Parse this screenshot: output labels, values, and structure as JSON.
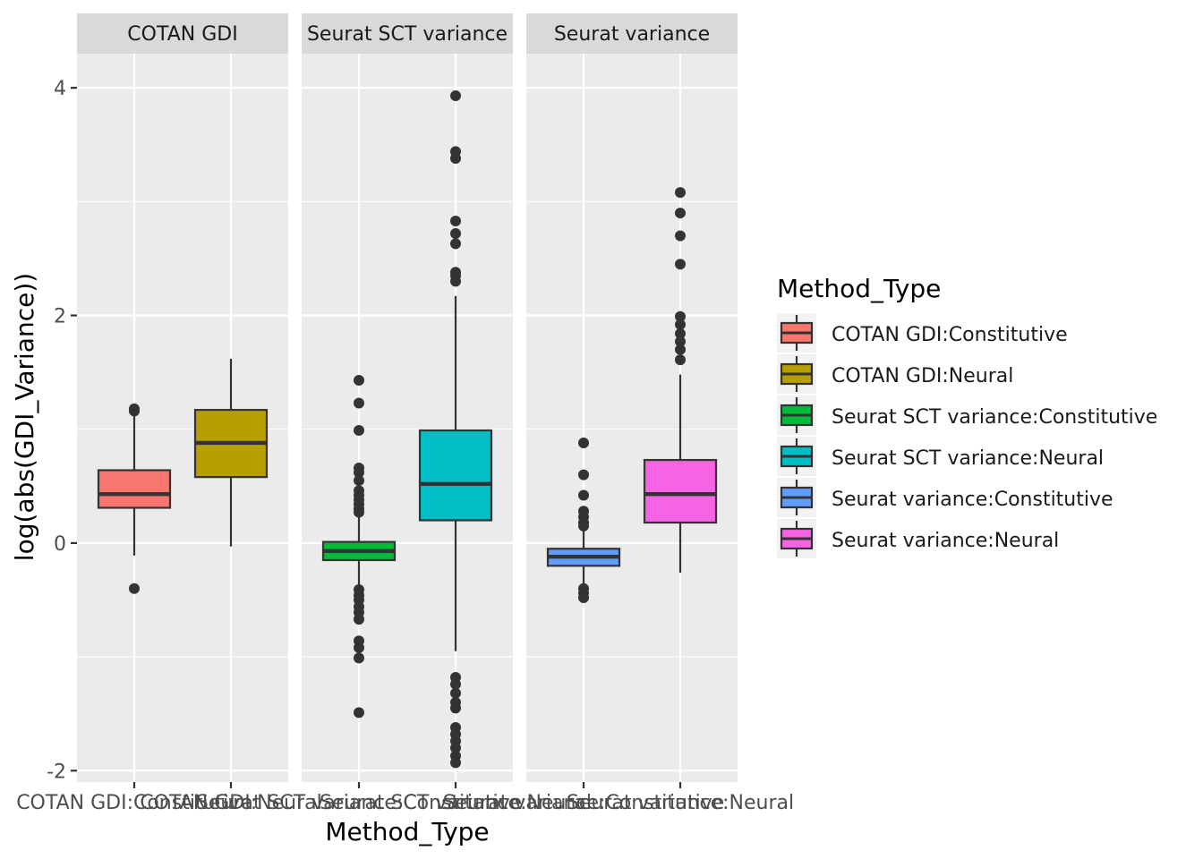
{
  "chart_data": {
    "type": "boxplot",
    "xlabel": "Method_Type",
    "ylabel": "log(abs(GDI_Variance))",
    "ylim": [
      -2.1,
      4.3
    ],
    "yticks": [
      -2,
      0,
      2,
      4
    ],
    "ytick_labels": [
      "-2",
      "0",
      "2",
      "4"
    ],
    "grid": true,
    "legend": {
      "title": "Method_Type",
      "position": "right",
      "entries": [
        {
          "label": "COTAN GDI:Constitutive",
          "color": "#F8766D"
        },
        {
          "label": "COTAN GDI:Neural",
          "color": "#B79F00"
        },
        {
          "label": "Seurat SCT variance:Constitutive",
          "color": "#00BA38"
        },
        {
          "label": "Seurat SCT variance:Neural",
          "color": "#00BFC4"
        },
        {
          "label": "Seurat variance:Constitutive",
          "color": "#619CFF"
        },
        {
          "label": "Seurat variance:Neural",
          "color": "#F564E3"
        }
      ]
    },
    "panels": [
      {
        "strip": "COTAN GDI",
        "categories": [
          "COTAN GDI:Constitutive",
          "COTAN GDI:Neural"
        ],
        "boxes": [
          {
            "label": "COTAN GDI:Constitutive",
            "color": "#F8766D",
            "q1": 0.31,
            "median": 0.43,
            "q3": 0.64,
            "whisker_low": -0.11,
            "whisker_high": 1.12,
            "outliers": [
              1.18,
              1.16,
              -0.4
            ]
          },
          {
            "label": "COTAN GDI:Neural",
            "color": "#B79F00",
            "q1": 0.58,
            "median": 0.88,
            "q3": 1.17,
            "whisker_low": -0.03,
            "whisker_high": 1.62,
            "outliers": []
          }
        ]
      },
      {
        "strip": "Seurat SCT variance",
        "categories": [
          "Seurat SCT variance:Constitutive",
          "Seurat SCT variance:Neural"
        ],
        "boxes": [
          {
            "label": "Seurat SCT variance:Constitutive",
            "color": "#00BA38",
            "q1": -0.15,
            "median": -0.07,
            "q3": 0.01,
            "whisker_low": -0.39,
            "whisker_high": 0.23,
            "outliers": [
              1.43,
              1.23,
              0.99,
              0.66,
              0.62,
              0.55,
              0.46,
              0.42,
              0.38,
              0.34,
              0.3,
              0.27,
              -0.41,
              -0.46,
              -0.5,
              -0.56,
              -0.61,
              -0.67,
              -0.86,
              -0.92,
              -1.01,
              -1.49
            ]
          },
          {
            "label": "Seurat SCT variance:Neural",
            "color": "#00BFC4",
            "q1": 0.2,
            "median": 0.52,
            "q3": 0.99,
            "whisker_low": -0.95,
            "whisker_high": 2.17,
            "outliers": [
              3.93,
              3.44,
              3.38,
              2.83,
              2.72,
              2.63,
              2.38,
              2.35,
              2.3,
              -1.18,
              -1.24,
              -1.32,
              -1.4,
              -1.45,
              -1.62,
              -1.68,
              -1.74,
              -1.8,
              -1.87,
              -1.93
            ]
          }
        ]
      },
      {
        "strip": "Seurat variance",
        "categories": [
          "Seurat variance:Constitutive",
          "Seurat variance:Neural"
        ],
        "boxes": [
          {
            "label": "Seurat variance:Constitutive",
            "color": "#619CFF",
            "q1": -0.2,
            "median": -0.12,
            "q3": -0.05,
            "whisker_low": -0.38,
            "whisker_high": 0.12,
            "outliers": [
              0.88,
              0.6,
              0.42,
              0.28,
              0.23,
              0.18,
              0.15,
              -0.4,
              -0.44,
              -0.48
            ]
          },
          {
            "label": "Seurat variance:Neural",
            "color": "#F564E3",
            "q1": 0.18,
            "median": 0.43,
            "q3": 0.73,
            "whisker_low": -0.26,
            "whisker_high": 1.48,
            "outliers": [
              3.08,
              2.9,
              2.7,
              2.45,
              1.99,
              1.92,
              1.84,
              1.77,
              1.7,
              1.61
            ]
          }
        ]
      }
    ]
  }
}
